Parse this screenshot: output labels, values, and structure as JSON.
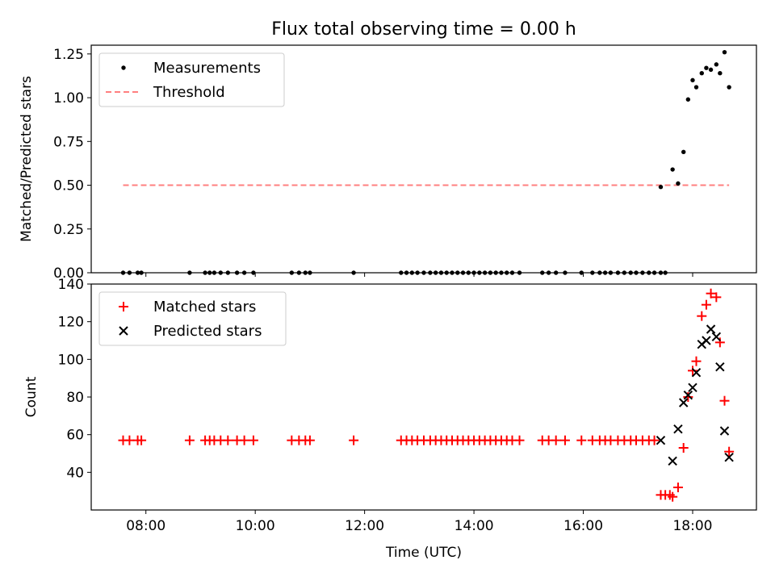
{
  "figure": {
    "title": "Flux total observing time = 0.00 h"
  },
  "colors": {
    "measurements": "#000000",
    "threshold": "#ff7f7f",
    "matched": "#ff0000",
    "predicted": "#000000"
  },
  "chart_data": [
    {
      "type": "scatter",
      "title": "Flux total observing time = 0.00 h",
      "ylabel": "Matched/Predicted stars",
      "xlabel": "",
      "xlim": [
        "07:00",
        "19:10"
      ],
      "ylim": [
        0.0,
        1.3
      ],
      "yticks": [
        "0.00",
        "0.25",
        "0.50",
        "0.75",
        "1.00",
        "1.25"
      ],
      "legend_position": "top-left",
      "series": [
        {
          "name": "Measurements",
          "marker": "dot",
          "points": [
            [
              "07:35",
              0
            ],
            [
              "07:42",
              0
            ],
            [
              "07:51",
              0
            ],
            [
              "07:55",
              0
            ],
            [
              "08:48",
              0
            ],
            [
              "09:05",
              0
            ],
            [
              "09:10",
              0
            ],
            [
              "09:15",
              0
            ],
            [
              "09:22",
              0
            ],
            [
              "09:30",
              0
            ],
            [
              "09:40",
              0
            ],
            [
              "09:48",
              0
            ],
            [
              "09:58",
              0
            ],
            [
              "10:40",
              0
            ],
            [
              "10:48",
              0
            ],
            [
              "10:55",
              0
            ],
            [
              "11:00",
              0
            ],
            [
              "11:48",
              0
            ],
            [
              "12:40",
              0
            ],
            [
              "12:46",
              0
            ],
            [
              "12:52",
              0
            ],
            [
              "12:58",
              0
            ],
            [
              "13:05",
              0
            ],
            [
              "13:12",
              0
            ],
            [
              "13:18",
              0
            ],
            [
              "13:24",
              0
            ],
            [
              "13:30",
              0
            ],
            [
              "13:36",
              0
            ],
            [
              "13:42",
              0
            ],
            [
              "13:48",
              0
            ],
            [
              "13:54",
              0
            ],
            [
              "14:00",
              0
            ],
            [
              "14:06",
              0
            ],
            [
              "14:12",
              0
            ],
            [
              "14:18",
              0
            ],
            [
              "14:24",
              0
            ],
            [
              "14:30",
              0
            ],
            [
              "14:36",
              0
            ],
            [
              "14:42",
              0
            ],
            [
              "14:50",
              0
            ],
            [
              "15:15",
              0
            ],
            [
              "15:22",
              0
            ],
            [
              "15:30",
              0
            ],
            [
              "15:40",
              0
            ],
            [
              "15:58",
              0
            ],
            [
              "16:10",
              0
            ],
            [
              "16:18",
              0
            ],
            [
              "16:24",
              0
            ],
            [
              "16:30",
              0
            ],
            [
              "16:38",
              0
            ],
            [
              "16:45",
              0
            ],
            [
              "16:52",
              0
            ],
            [
              "16:58",
              0
            ],
            [
              "17:05",
              0
            ],
            [
              "17:12",
              0
            ],
            [
              "17:18",
              0
            ],
            [
              "17:25",
              0
            ],
            [
              "17:30",
              0
            ],
            [
              "17:25",
              0.49
            ],
            [
              "17:38",
              0.59
            ],
            [
              "17:44",
              0.51
            ],
            [
              "17:50",
              0.69
            ],
            [
              "17:55",
              0.99
            ],
            [
              "18:00",
              1.1
            ],
            [
              "18:04",
              1.06
            ],
            [
              "18:10",
              1.14
            ],
            [
              "18:15",
              1.17
            ],
            [
              "18:20",
              1.16
            ],
            [
              "18:26",
              1.19
            ],
            [
              "18:30",
              1.14
            ],
            [
              "18:35",
              1.26
            ],
            [
              "18:40",
              1.06
            ]
          ]
        },
        {
          "name": "Threshold",
          "marker": "dashed-line",
          "points": [
            [
              "07:35",
              0.5
            ],
            [
              "18:40",
              0.5
            ]
          ]
        }
      ]
    },
    {
      "type": "scatter",
      "title": "",
      "xlabel": "Time (UTC)",
      "ylabel": "Count",
      "xlim": [
        "07:00",
        "19:10"
      ],
      "ylim": [
        20,
        140
      ],
      "xticks": [
        "08:00",
        "10:00",
        "12:00",
        "14:00",
        "16:00",
        "18:00"
      ],
      "yticks": [
        "40",
        "60",
        "80",
        "100",
        "120",
        "140"
      ],
      "legend_position": "top-left",
      "series": [
        {
          "name": "Matched stars",
          "marker": "plus",
          "points": [
            [
              "07:35",
              57
            ],
            [
              "07:42",
              57
            ],
            [
              "07:51",
              57
            ],
            [
              "07:55",
              57
            ],
            [
              "08:48",
              57
            ],
            [
              "09:05",
              57
            ],
            [
              "09:10",
              57
            ],
            [
              "09:15",
              57
            ],
            [
              "09:22",
              57
            ],
            [
              "09:30",
              57
            ],
            [
              "09:40",
              57
            ],
            [
              "09:48",
              57
            ],
            [
              "09:58",
              57
            ],
            [
              "10:40",
              57
            ],
            [
              "10:48",
              57
            ],
            [
              "10:55",
              57
            ],
            [
              "11:00",
              57
            ],
            [
              "11:48",
              57
            ],
            [
              "12:40",
              57
            ],
            [
              "12:46",
              57
            ],
            [
              "12:52",
              57
            ],
            [
              "12:58",
              57
            ],
            [
              "13:05",
              57
            ],
            [
              "13:12",
              57
            ],
            [
              "13:18",
              57
            ],
            [
              "13:24",
              57
            ],
            [
              "13:30",
              57
            ],
            [
              "13:36",
              57
            ],
            [
              "13:42",
              57
            ],
            [
              "13:48",
              57
            ],
            [
              "13:54",
              57
            ],
            [
              "14:00",
              57
            ],
            [
              "14:06",
              57
            ],
            [
              "14:12",
              57
            ],
            [
              "14:18",
              57
            ],
            [
              "14:24",
              57
            ],
            [
              "14:30",
              57
            ],
            [
              "14:36",
              57
            ],
            [
              "14:42",
              57
            ],
            [
              "14:50",
              57
            ],
            [
              "15:15",
              57
            ],
            [
              "15:22",
              57
            ],
            [
              "15:30",
              57
            ],
            [
              "15:40",
              57
            ],
            [
              "15:58",
              57
            ],
            [
              "16:10",
              57
            ],
            [
              "16:18",
              57
            ],
            [
              "16:24",
              57
            ],
            [
              "16:30",
              57
            ],
            [
              "16:38",
              57
            ],
            [
              "16:45",
              57
            ],
            [
              "16:52",
              57
            ],
            [
              "16:58",
              57
            ],
            [
              "17:05",
              57
            ],
            [
              "17:12",
              57
            ],
            [
              "17:18",
              57
            ],
            [
              "17:25",
              28
            ],
            [
              "17:30",
              28
            ],
            [
              "17:35",
              28
            ],
            [
              "17:38",
              27
            ],
            [
              "17:44",
              32
            ],
            [
              "17:50",
              53
            ],
            [
              "17:55",
              80
            ],
            [
              "18:00",
              94
            ],
            [
              "18:04",
              99
            ],
            [
              "18:10",
              123
            ],
            [
              "18:15",
              129
            ],
            [
              "18:20",
              135
            ],
            [
              "18:26",
              133
            ],
            [
              "18:30",
              109
            ],
            [
              "18:35",
              78
            ],
            [
              "18:40",
              51
            ]
          ]
        },
        {
          "name": "Predicted stars",
          "marker": "x",
          "points": [
            [
              "17:25",
              57
            ],
            [
              "17:38",
              46
            ],
            [
              "17:44",
              63
            ],
            [
              "17:50",
              77
            ],
            [
              "17:55",
              81
            ],
            [
              "18:00",
              85
            ],
            [
              "18:04",
              93
            ],
            [
              "18:10",
              108
            ],
            [
              "18:15",
              110
            ],
            [
              "18:20",
              116
            ],
            [
              "18:26",
              112
            ],
            [
              "18:30",
              96
            ],
            [
              "18:35",
              62
            ],
            [
              "18:40",
              48
            ]
          ]
        }
      ]
    }
  ]
}
